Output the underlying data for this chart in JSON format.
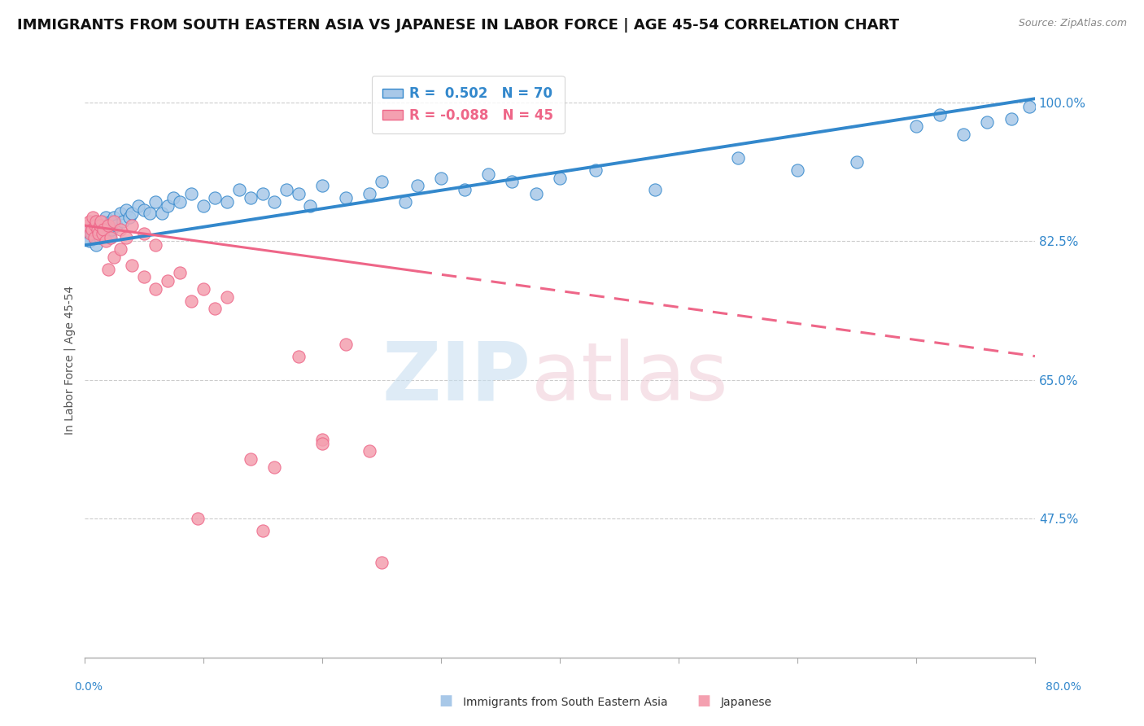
{
  "title": "IMMIGRANTS FROM SOUTH EASTERN ASIA VS JAPANESE IN LABOR FORCE | AGE 45-54 CORRELATION CHART",
  "source": "Source: ZipAtlas.com",
  "ylabel": "In Labor Force | Age 45-54",
  "xlim": [
    0.0,
    80.0
  ],
  "ylim": [
    30.0,
    105.0
  ],
  "yticks": [
    47.5,
    65.0,
    82.5,
    100.0
  ],
  "ytick_labels": [
    "47.5%",
    "65.0%",
    "82.5%",
    "100.0%"
  ],
  "blue_R": 0.502,
  "blue_N": 70,
  "pink_R": -0.088,
  "pink_N": 45,
  "blue_color": "#a8c8e8",
  "pink_color": "#f4a0b0",
  "blue_line_color": "#3388cc",
  "pink_line_color": "#ee6688",
  "bottom_legend_blue": "Immigrants from South Eastern Asia",
  "bottom_legend_pink": "Japanese",
  "blue_trend_y0": 82.0,
  "blue_trend_y1": 100.5,
  "pink_trend_y0": 84.5,
  "pink_trend_y1": 68.0,
  "pink_solid_x_end": 28.0,
  "grid_color": "#cccccc",
  "background_color": "#ffffff",
  "title_fontsize": 13,
  "axis_label_fontsize": 10,
  "tick_fontsize": 11,
  "legend_fontsize": 12,
  "blue_scatter_x": [
    0.3,
    0.4,
    0.5,
    0.6,
    0.7,
    0.8,
    0.9,
    1.0,
    1.1,
    1.2,
    1.3,
    1.4,
    1.5,
    1.6,
    1.7,
    1.8,
    1.9,
    2.0,
    2.1,
    2.2,
    2.3,
    2.5,
    2.7,
    3.0,
    3.2,
    3.5,
    3.8,
    4.0,
    4.5,
    5.0,
    5.5,
    6.0,
    6.5,
    7.0,
    7.5,
    8.0,
    9.0,
    10.0,
    11.0,
    12.0,
    13.0,
    14.0,
    15.0,
    16.0,
    17.0,
    18.0,
    19.0,
    20.0,
    22.0,
    24.0,
    25.0,
    27.0,
    28.0,
    30.0,
    32.0,
    34.0,
    36.0,
    38.0,
    40.0,
    43.0,
    48.0,
    55.0,
    60.0,
    65.0,
    70.0,
    72.0,
    74.0,
    76.0,
    78.0,
    79.5
  ],
  "blue_scatter_y": [
    83.0,
    82.5,
    84.0,
    83.5,
    84.5,
    83.0,
    85.0,
    82.0,
    83.5,
    84.0,
    83.0,
    84.5,
    85.0,
    83.5,
    84.0,
    85.5,
    83.5,
    84.5,
    83.0,
    85.0,
    84.0,
    85.5,
    84.5,
    86.0,
    85.0,
    86.5,
    85.5,
    86.0,
    87.0,
    86.5,
    86.0,
    87.5,
    86.0,
    87.0,
    88.0,
    87.5,
    88.5,
    87.0,
    88.0,
    87.5,
    89.0,
    88.0,
    88.5,
    87.5,
    89.0,
    88.5,
    87.0,
    89.5,
    88.0,
    88.5,
    90.0,
    87.5,
    89.5,
    90.5,
    89.0,
    91.0,
    90.0,
    88.5,
    90.5,
    91.5,
    89.0,
    93.0,
    91.5,
    92.5,
    97.0,
    98.5,
    96.0,
    97.5,
    98.0,
    99.5
  ],
  "pink_scatter_x": [
    0.3,
    0.4,
    0.5,
    0.6,
    0.7,
    0.8,
    0.9,
    1.0,
    1.1,
    1.2,
    1.3,
    1.4,
    1.5,
    1.6,
    1.8,
    2.0,
    2.2,
    2.5,
    3.0,
    3.5,
    4.0,
    5.0,
    6.0,
    2.0,
    2.5,
    3.0,
    4.0,
    5.0,
    6.0,
    7.0,
    8.0,
    9.0,
    10.0,
    11.0,
    12.0,
    14.0,
    16.0,
    18.0,
    20.0,
    22.0,
    24.0,
    9.5,
    15.0,
    20.0,
    25.0
  ],
  "pink_scatter_y": [
    84.5,
    85.0,
    83.5,
    84.0,
    85.5,
    83.0,
    84.5,
    85.0,
    84.0,
    83.5,
    84.5,
    85.0,
    83.5,
    84.0,
    82.5,
    84.5,
    83.0,
    85.0,
    84.0,
    83.0,
    84.5,
    83.5,
    82.0,
    79.0,
    80.5,
    81.5,
    79.5,
    78.0,
    76.5,
    77.5,
    78.5,
    75.0,
    76.5,
    74.0,
    75.5,
    55.0,
    54.0,
    68.0,
    57.5,
    69.5,
    56.0,
    47.5,
    46.0,
    57.0,
    42.0
  ]
}
